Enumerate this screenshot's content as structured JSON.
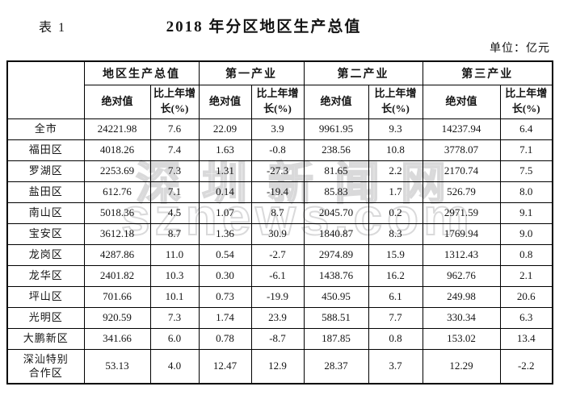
{
  "page": {
    "table_label": "表 1",
    "title": "2018 年分区地区生产总值",
    "unit_note": "单位：亿元"
  },
  "watermark": {
    "line1": "深圳新闻网",
    "line2": "sznews.com"
  },
  "table": {
    "corner_label": "",
    "column_groups": [
      "地区生产总值",
      "第一产业",
      "第二产业",
      "第三产业"
    ],
    "sub_headers": {
      "absolute": "绝对值",
      "growth": "比上年增\n长(%)"
    },
    "rows": [
      {
        "region": "全市",
        "values": [
          "24221.98",
          "7.6",
          "22.09",
          "3.9",
          "9961.95",
          "9.3",
          "14237.94",
          "6.4"
        ]
      },
      {
        "region": "福田区",
        "values": [
          "4018.26",
          "7.4",
          "1.63",
          "-0.8",
          "238.56",
          "10.8",
          "3778.07",
          "7.1"
        ]
      },
      {
        "region": "罗湖区",
        "values": [
          "2253.69",
          "7.3",
          "1.31",
          "-27.3",
          "81.65",
          "2.2",
          "2170.74",
          "7.5"
        ]
      },
      {
        "region": "盐田区",
        "values": [
          "612.76",
          "7.1",
          "0.14",
          "-19.4",
          "85.83",
          "1.7",
          "526.79",
          "8.0"
        ]
      },
      {
        "region": "南山区",
        "values": [
          "5018.36",
          "4.5",
          "1.07",
          "8.7",
          "2045.70",
          "0.2",
          "2971.59",
          "9.1"
        ]
      },
      {
        "region": "宝安区",
        "values": [
          "3612.18",
          "8.7",
          "1.36",
          "30.9",
          "1840.87",
          "8.3",
          "1769.94",
          "9.0"
        ]
      },
      {
        "region": "龙岗区",
        "values": [
          "4287.86",
          "11.0",
          "0.54",
          "-2.7",
          "2974.89",
          "15.9",
          "1312.43",
          "0.8"
        ]
      },
      {
        "region": "龙华区",
        "values": [
          "2401.82",
          "10.3",
          "0.30",
          "-6.1",
          "1438.76",
          "16.2",
          "962.76",
          "2.1"
        ]
      },
      {
        "region": "坪山区",
        "values": [
          "701.66",
          "10.1",
          "0.73",
          "-19.9",
          "450.95",
          "6.1",
          "249.98",
          "20.6"
        ]
      },
      {
        "region": "光明区",
        "values": [
          "920.59",
          "7.3",
          "1.74",
          "23.9",
          "588.51",
          "7.7",
          "330.34",
          "6.3"
        ]
      },
      {
        "region": "大鹏新区",
        "values": [
          "341.66",
          "6.0",
          "0.78",
          "-8.7",
          "187.85",
          "0.8",
          "153.02",
          "13.4"
        ]
      },
      {
        "region": "深汕特别\n合作区",
        "values": [
          "53.13",
          "4.0",
          "12.47",
          "12.9",
          "28.37",
          "3.7",
          "12.29",
          "-2.2"
        ],
        "tall": true
      }
    ]
  }
}
